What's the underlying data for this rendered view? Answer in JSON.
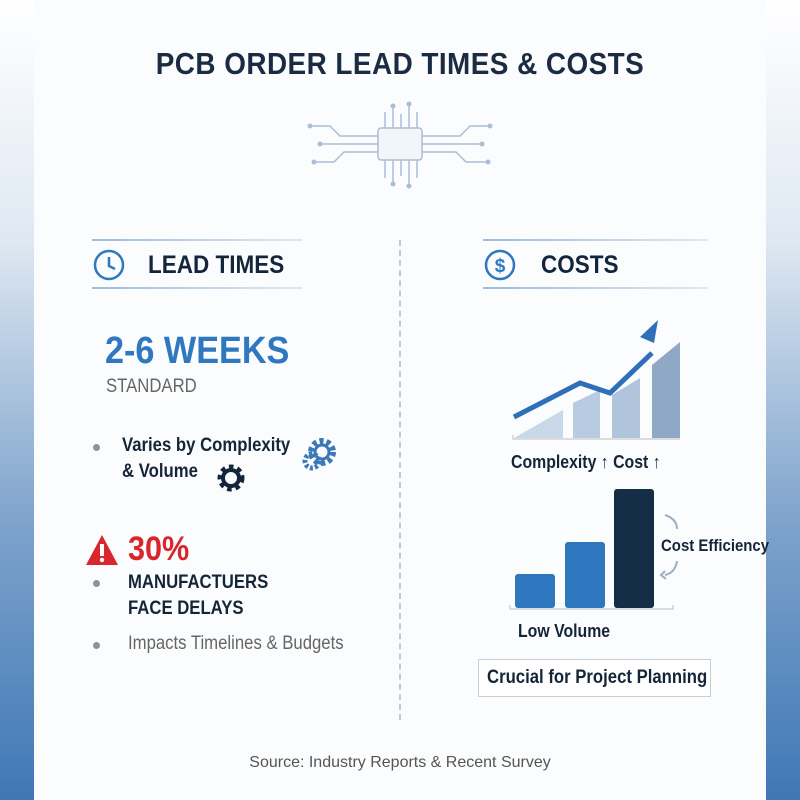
{
  "title": "PCB ORDER LEAD TIMES & COSTS",
  "lead_times": {
    "heading": "LEAD TIMES",
    "icon": "clock-icon",
    "range": "2-6 WEEKS",
    "range_sub": "STANDARD",
    "bullet1": [
      "Varies by Complexity",
      "& Volume"
    ],
    "stat": "30%",
    "stat_text": [
      "MANUFACTUERS",
      "FACE DELAYS"
    ],
    "bullet3": "Impacts Timelines & Budgets"
  },
  "costs": {
    "heading": "COSTS",
    "icon": "dollar-icon",
    "chart1_label": "Complexity ↑ Cost ↑",
    "chart2_side_label": "Cost Efficiency",
    "chart2_label": "Low Volume",
    "callout": "Crucial for Project Planning"
  },
  "source": "Source: Industry Reports & Recent Survey",
  "colors": {
    "accent": "#2f78c0",
    "alert": "#d9262c",
    "dark": "#13253b"
  }
}
